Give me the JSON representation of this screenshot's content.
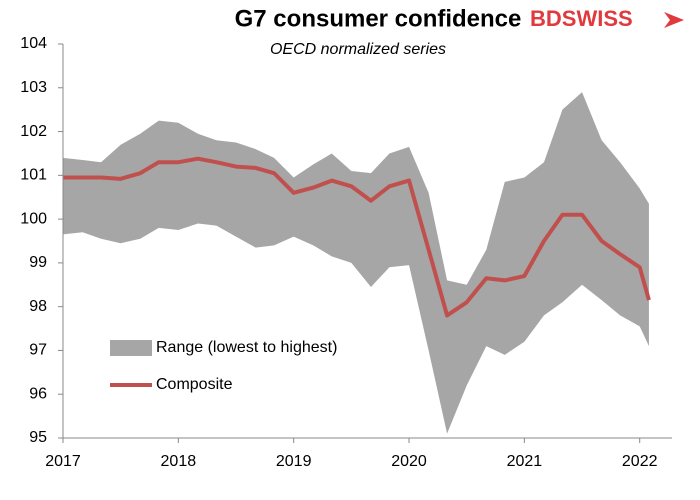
{
  "chart_data": {
    "type": "band_line",
    "title": "G7 consumer confidence",
    "subtitle": "OECD normalized series",
    "logo": "BDSWISS",
    "x": [
      2017,
      2017.17,
      2017.33,
      2017.5,
      2017.67,
      2017.83,
      2018,
      2018.17,
      2018.33,
      2018.5,
      2018.67,
      2018.83,
      2019,
      2019.17,
      2019.33,
      2019.5,
      2019.67,
      2019.83,
      2020,
      2020.17,
      2020.33,
      2020.5,
      2020.67,
      2020.83,
      2021,
      2021.17,
      2021.33,
      2021.5,
      2021.67,
      2021.83,
      2022,
      2022.08
    ],
    "series": [
      {
        "name": "Range (lowest to highest)",
        "color": "#a6a6a6",
        "low": [
          99.65,
          99.7,
          99.55,
          99.45,
          99.55,
          99.8,
          99.75,
          99.9,
          99.85,
          99.6,
          99.35,
          99.4,
          99.6,
          99.4,
          99.15,
          99.0,
          98.45,
          98.9,
          98.95,
          97.0,
          95.1,
          96.2,
          97.1,
          96.9,
          97.2,
          97.8,
          98.1,
          98.5,
          98.15,
          97.8,
          97.55,
          97.1
        ],
        "high": [
          101.4,
          101.35,
          101.3,
          101.7,
          101.95,
          102.25,
          102.2,
          101.95,
          101.8,
          101.75,
          101.6,
          101.4,
          100.95,
          101.25,
          101.5,
          101.1,
          101.05,
          101.5,
          101.65,
          100.6,
          98.6,
          98.5,
          99.3,
          100.85,
          100.95,
          101.3,
          102.5,
          102.9,
          101.8,
          101.3,
          100.7,
          100.35
        ]
      },
      {
        "name": "Composite",
        "color": "#c0504d",
        "values": [
          100.95,
          100.95,
          100.95,
          100.92,
          101.05,
          101.3,
          101.3,
          101.38,
          101.3,
          101.2,
          101.17,
          101.05,
          100.6,
          100.72,
          100.88,
          100.75,
          100.42,
          100.75,
          100.88,
          99.3,
          97.8,
          98.1,
          98.65,
          98.6,
          98.7,
          99.5,
          100.1,
          100.1,
          99.5,
          99.2,
          98.9,
          98.15
        ]
      }
    ],
    "xlim": [
      2017,
      2022.28
    ],
    "xticks": [
      2017,
      2018,
      2019,
      2020,
      2021,
      2022
    ],
    "ylim": [
      95,
      104
    ],
    "yticks": [
      95,
      96,
      97,
      98,
      99,
      100,
      101,
      102,
      103,
      104
    ],
    "grid": false
  }
}
